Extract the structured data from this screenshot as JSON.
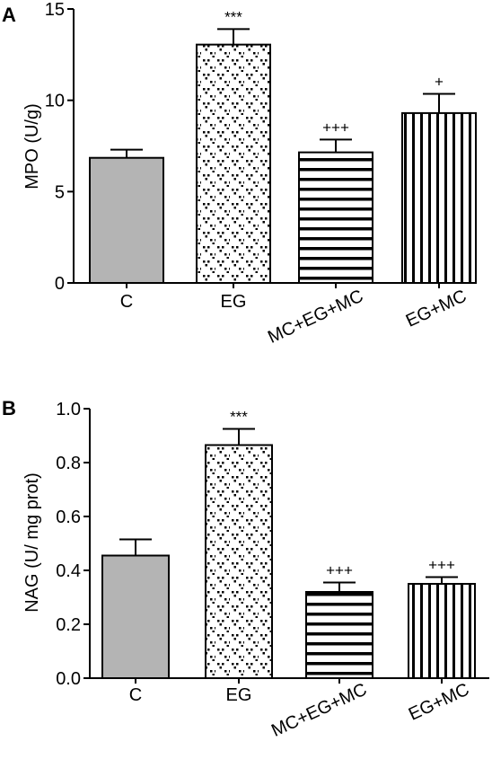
{
  "chart_data": [
    {
      "type": "bar",
      "panel_label": "A",
      "categories": [
        "C",
        "EG",
        "MC+EG+MC",
        "EG+MC"
      ],
      "values": [
        6.85,
        13.05,
        7.15,
        9.3
      ],
      "errors": [
        0.45,
        0.85,
        0.7,
        1.05
      ],
      "annotations": [
        "",
        "***",
        "+++",
        "+"
      ],
      "patterns": [
        "solid-gray",
        "dots",
        "horizontal-lines",
        "vertical-lines"
      ],
      "ylabel": "MPO (U/g)",
      "ylim": [
        0,
        15
      ],
      "yticks": [
        0,
        5,
        10,
        15
      ],
      "ytick_labels": [
        "0",
        "5",
        "10",
        "15"
      ],
      "grid": false
    },
    {
      "type": "bar",
      "panel_label": "B",
      "categories": [
        "C",
        "EG",
        "MC+EG+MC",
        "EG+MC"
      ],
      "values": [
        0.455,
        0.865,
        0.32,
        0.35
      ],
      "errors": [
        0.06,
        0.06,
        0.035,
        0.025
      ],
      "annotations": [
        "",
        "***",
        "+++",
        "+++"
      ],
      "patterns": [
        "solid-gray",
        "dots",
        "horizontal-lines",
        "vertical-lines"
      ],
      "ylabel": "NAG (U/ mg prot)",
      "ylim": [
        0,
        1.0
      ],
      "yticks": [
        0,
        0.2,
        0.4,
        0.6,
        0.8,
        1.0
      ],
      "ytick_labels": [
        "0.0",
        "0.2",
        "0.4",
        "0.6",
        "0.8",
        "1.0"
      ],
      "grid": false
    }
  ],
  "colors": {
    "bar_gray": "#b4b4b4",
    "ink": "#000000"
  }
}
